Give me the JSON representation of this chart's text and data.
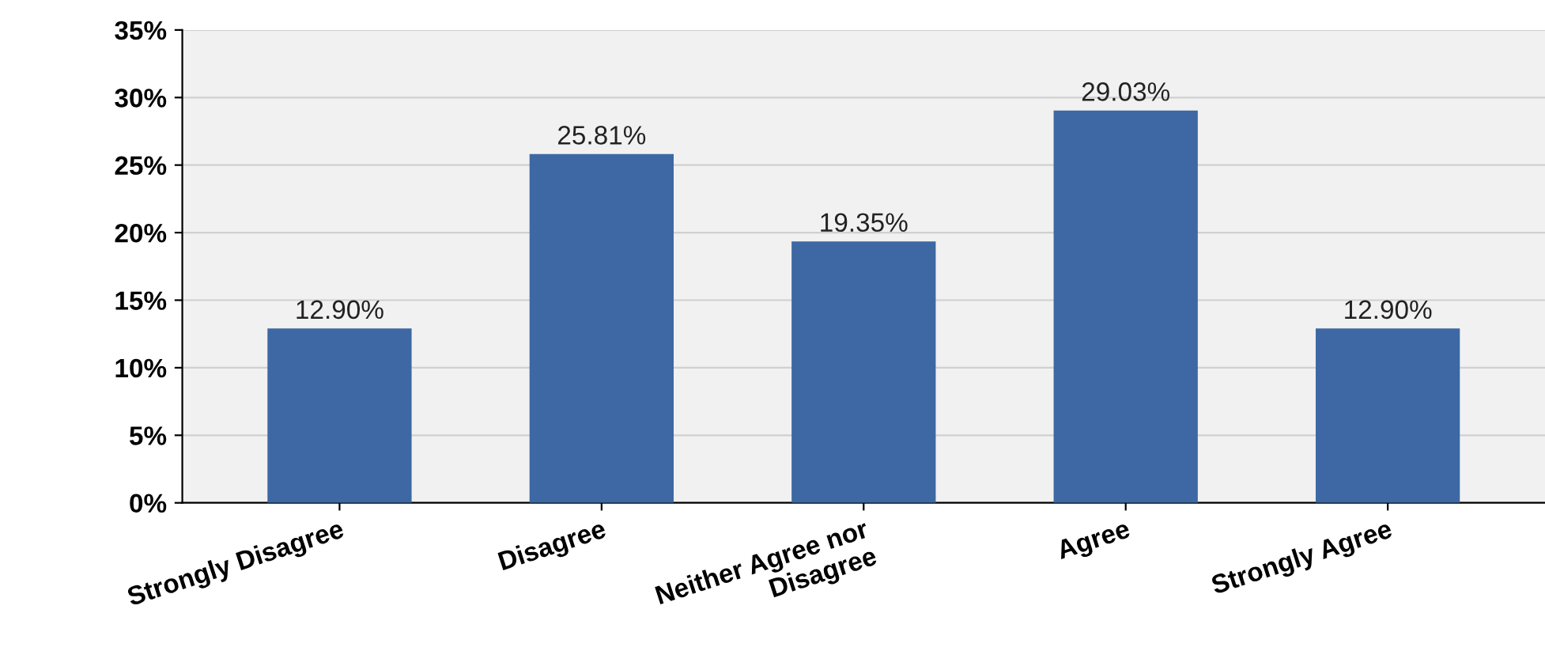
{
  "chart_data": {
    "type": "bar",
    "categories": [
      "Strongly Disagree",
      "Disagree",
      "Neither Agree nor\nDisagree",
      "Agree",
      "Strongly Agree"
    ],
    "values": [
      12.9,
      25.81,
      19.35,
      29.03,
      12.9
    ],
    "value_labels": [
      "12.90%",
      "25.81%",
      "19.35%",
      "29.03%",
      "12.90%"
    ],
    "color": "#3d68a3",
    "ylim": [
      0,
      35
    ],
    "yticks": [
      {
        "value": 0,
        "label": "0%"
      },
      {
        "value": 5,
        "label": "5%"
      },
      {
        "value": 10,
        "label": "10%"
      },
      {
        "value": 15,
        "label": "15%"
      },
      {
        "value": 20,
        "label": "20%"
      },
      {
        "value": 25,
        "label": "25%"
      },
      {
        "value": 30,
        "label": "30%"
      },
      {
        "value": 35,
        "label": "35%"
      }
    ],
    "grid": "y"
  }
}
